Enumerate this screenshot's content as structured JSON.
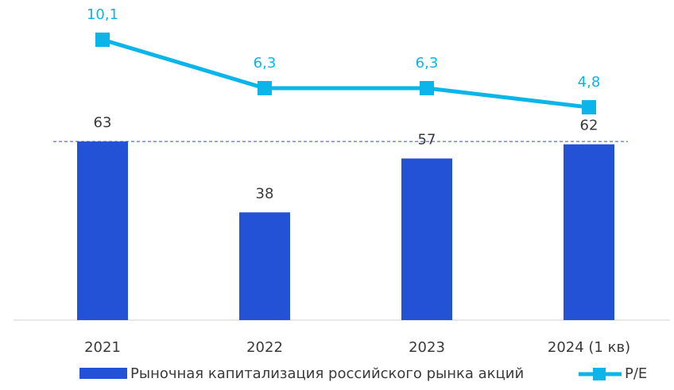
{
  "chart_data": {
    "type": "bar",
    "categories": [
      "2021",
      "2022",
      "2023",
      "2024 (1 кв)"
    ],
    "series": [
      {
        "name": "Рыночная капитализация российского рынка акций",
        "type": "bar",
        "color": "#2352d6",
        "values": [
          63,
          38,
          57,
          62
        ]
      },
      {
        "name": "P/E",
        "type": "line",
        "axis": "y2",
        "color": "#0bb5ea",
        "values": [
          10.1,
          6.3,
          6.3,
          4.8
        ],
        "value_labels": [
          "10,1",
          "6,3",
          "6,3",
          "4,8"
        ]
      }
    ],
    "ylim": [
      0,
      100
    ],
    "y2lim": [
      -11.9,
      10.35
    ],
    "legend": "bottom"
  }
}
